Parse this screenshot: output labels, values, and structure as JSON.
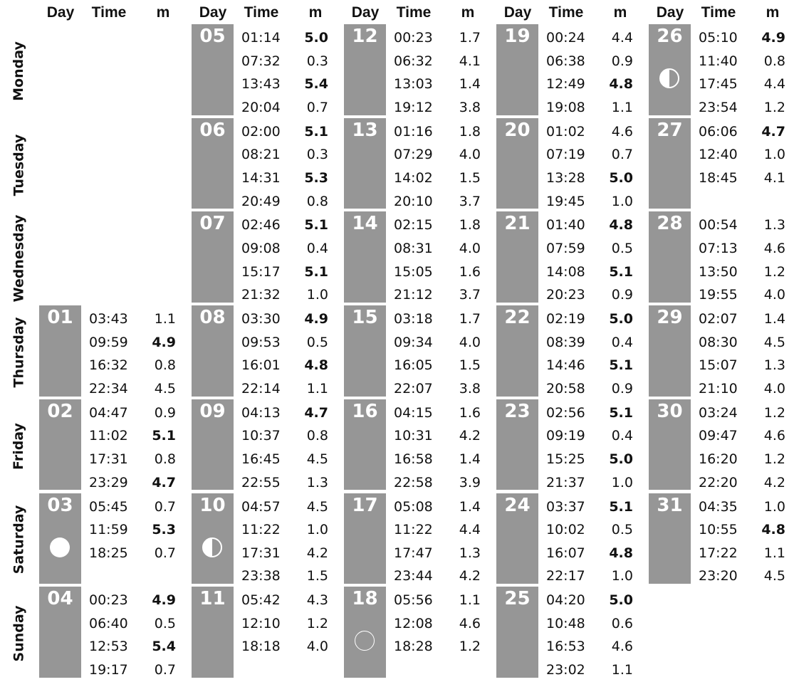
{
  "headers": {
    "day": "Day",
    "time": "Time",
    "height": "m"
  },
  "weekdays": [
    "Monday",
    "Tuesday",
    "Wednesday",
    "Thursday",
    "Friday",
    "Saturday",
    "Sunday"
  ],
  "days": [
    {
      "day": "01",
      "col": 0,
      "row": 3,
      "tides": [
        [
          "03:43",
          "1.1",
          false
        ],
        [
          "09:59",
          "4.9",
          true
        ],
        [
          "16:32",
          "0.8",
          false
        ],
        [
          "22:34",
          "4.5",
          false
        ]
      ]
    },
    {
      "day": "02",
      "col": 0,
      "row": 4,
      "tides": [
        [
          "04:47",
          "0.9",
          false
        ],
        [
          "11:02",
          "5.1",
          true
        ],
        [
          "17:31",
          "0.8",
          false
        ],
        [
          "23:29",
          "4.7",
          true
        ]
      ]
    },
    {
      "day": "03",
      "col": 0,
      "row": 5,
      "moon": "full-moon",
      "tides": [
        [
          "05:45",
          "0.7",
          false
        ],
        [
          "11:59",
          "5.3",
          true
        ],
        [
          "18:25",
          "0.7",
          false
        ]
      ]
    },
    {
      "day": "04",
      "col": 0,
      "row": 6,
      "tides": [
        [
          "00:23",
          "4.9",
          true
        ],
        [
          "06:40",
          "0.5",
          false
        ],
        [
          "12:53",
          "5.4",
          true
        ],
        [
          "19:17",
          "0.7",
          false
        ]
      ]
    },
    {
      "day": "05",
      "col": 1,
      "row": 0,
      "tides": [
        [
          "01:14",
          "5.0",
          true
        ],
        [
          "07:32",
          "0.3",
          false
        ],
        [
          "13:43",
          "5.4",
          true
        ],
        [
          "20:04",
          "0.7",
          false
        ]
      ]
    },
    {
      "day": "06",
      "col": 1,
      "row": 1,
      "tides": [
        [
          "02:00",
          "5.1",
          true
        ],
        [
          "08:21",
          "0.3",
          false
        ],
        [
          "14:31",
          "5.3",
          true
        ],
        [
          "20:49",
          "0.8",
          false
        ]
      ]
    },
    {
      "day": "07",
      "col": 1,
      "row": 2,
      "tides": [
        [
          "02:46",
          "5.1",
          true
        ],
        [
          "09:08",
          "0.4",
          false
        ],
        [
          "15:17",
          "5.1",
          true
        ],
        [
          "21:32",
          "1.0",
          false
        ]
      ]
    },
    {
      "day": "08",
      "col": 1,
      "row": 3,
      "tides": [
        [
          "03:30",
          "4.9",
          true
        ],
        [
          "09:53",
          "0.5",
          false
        ],
        [
          "16:01",
          "4.8",
          true
        ],
        [
          "22:14",
          "1.1",
          false
        ]
      ]
    },
    {
      "day": "09",
      "col": 1,
      "row": 4,
      "tides": [
        [
          "04:13",
          "4.7",
          true
        ],
        [
          "10:37",
          "0.8",
          false
        ],
        [
          "16:45",
          "4.5",
          false
        ],
        [
          "22:55",
          "1.3",
          false
        ]
      ]
    },
    {
      "day": "10",
      "col": 1,
      "row": 5,
      "moon": "last-quarter",
      "tides": [
        [
          "04:57",
          "4.5",
          false
        ],
        [
          "11:22",
          "1.0",
          false
        ],
        [
          "17:31",
          "4.2",
          false
        ],
        [
          "23:38",
          "1.5",
          false
        ]
      ]
    },
    {
      "day": "11",
      "col": 1,
      "row": 6,
      "tides": [
        [
          "05:42",
          "4.3",
          false
        ],
        [
          "12:10",
          "1.2",
          false
        ],
        [
          "18:18",
          "4.0",
          false
        ]
      ]
    },
    {
      "day": "12",
      "col": 2,
      "row": 0,
      "tides": [
        [
          "00:23",
          "1.7",
          false
        ],
        [
          "06:32",
          "4.1",
          false
        ],
        [
          "13:03",
          "1.4",
          false
        ],
        [
          "19:12",
          "3.8",
          false
        ]
      ]
    },
    {
      "day": "13",
      "col": 2,
      "row": 1,
      "tides": [
        [
          "01:16",
          "1.8",
          false
        ],
        [
          "07:29",
          "4.0",
          false
        ],
        [
          "14:02",
          "1.5",
          false
        ],
        [
          "20:10",
          "3.7",
          false
        ]
      ]
    },
    {
      "day": "14",
      "col": 2,
      "row": 2,
      "tides": [
        [
          "02:15",
          "1.8",
          false
        ],
        [
          "08:31",
          "4.0",
          false
        ],
        [
          "15:05",
          "1.6",
          false
        ],
        [
          "21:12",
          "3.7",
          false
        ]
      ]
    },
    {
      "day": "15",
      "col": 2,
      "row": 3,
      "tides": [
        [
          "03:18",
          "1.7",
          false
        ],
        [
          "09:34",
          "4.0",
          false
        ],
        [
          "16:05",
          "1.5",
          false
        ],
        [
          "22:07",
          "3.8",
          false
        ]
      ]
    },
    {
      "day": "16",
      "col": 2,
      "row": 4,
      "tides": [
        [
          "04:15",
          "1.6",
          false
        ],
        [
          "10:31",
          "4.2",
          false
        ],
        [
          "16:58",
          "1.4",
          false
        ],
        [
          "22:58",
          "3.9",
          false
        ]
      ]
    },
    {
      "day": "17",
      "col": 2,
      "row": 5,
      "tides": [
        [
          "05:08",
          "1.4",
          false
        ],
        [
          "11:22",
          "4.4",
          false
        ],
        [
          "17:47",
          "1.3",
          false
        ],
        [
          "23:44",
          "4.2",
          false
        ]
      ]
    },
    {
      "day": "18",
      "col": 2,
      "row": 6,
      "moon": "new-moon",
      "tides": [
        [
          "05:56",
          "1.1",
          false
        ],
        [
          "12:08",
          "4.6",
          false
        ],
        [
          "18:28",
          "1.2",
          false
        ]
      ]
    },
    {
      "day": "19",
      "col": 3,
      "row": 0,
      "tides": [
        [
          "00:24",
          "4.4",
          false
        ],
        [
          "06:38",
          "0.9",
          false
        ],
        [
          "12:49",
          "4.8",
          true
        ],
        [
          "19:08",
          "1.1",
          false
        ]
      ]
    },
    {
      "day": "20",
      "col": 3,
      "row": 1,
      "tides": [
        [
          "01:02",
          "4.6",
          false
        ],
        [
          "07:19",
          "0.7",
          false
        ],
        [
          "13:28",
          "5.0",
          true
        ],
        [
          "19:45",
          "1.0",
          false
        ]
      ]
    },
    {
      "day": "21",
      "col": 3,
      "row": 2,
      "tides": [
        [
          "01:40",
          "4.8",
          true
        ],
        [
          "07:59",
          "0.5",
          false
        ],
        [
          "14:08",
          "5.1",
          true
        ],
        [
          "20:23",
          "0.9",
          false
        ]
      ]
    },
    {
      "day": "22",
      "col": 3,
      "row": 3,
      "tides": [
        [
          "02:19",
          "5.0",
          true
        ],
        [
          "08:39",
          "0.4",
          false
        ],
        [
          "14:46",
          "5.1",
          true
        ],
        [
          "20:58",
          "0.9",
          false
        ]
      ]
    },
    {
      "day": "23",
      "col": 3,
      "row": 4,
      "tides": [
        [
          "02:56",
          "5.1",
          true
        ],
        [
          "09:19",
          "0.4",
          false
        ],
        [
          "15:25",
          "5.0",
          true
        ],
        [
          "21:37",
          "1.0",
          false
        ]
      ]
    },
    {
      "day": "24",
      "col": 3,
      "row": 5,
      "tides": [
        [
          "03:37",
          "5.1",
          true
        ],
        [
          "10:02",
          "0.5",
          false
        ],
        [
          "16:07",
          "4.8",
          true
        ],
        [
          "22:17",
          "1.0",
          false
        ]
      ]
    },
    {
      "day": "25",
      "col": 3,
      "row": 6,
      "tides": [
        [
          "04:20",
          "5.0",
          true
        ],
        [
          "10:48",
          "0.6",
          false
        ],
        [
          "16:53",
          "4.6",
          false
        ],
        [
          "23:02",
          "1.1",
          false
        ]
      ]
    },
    {
      "day": "26",
      "col": 4,
      "row": 0,
      "moon": "first-quarter",
      "tides": [
        [
          "05:10",
          "4.9",
          true
        ],
        [
          "11:40",
          "0.8",
          false
        ],
        [
          "17:45",
          "4.4",
          false
        ],
        [
          "23:54",
          "1.2",
          false
        ]
      ]
    },
    {
      "day": "27",
      "col": 4,
      "row": 1,
      "tides": [
        [
          "06:06",
          "4.7",
          true
        ],
        [
          "12:40",
          "1.0",
          false
        ],
        [
          "18:45",
          "4.1",
          false
        ]
      ]
    },
    {
      "day": "28",
      "col": 4,
      "row": 2,
      "tides": [
        [
          "00:54",
          "1.3",
          false
        ],
        [
          "07:13",
          "4.6",
          false
        ],
        [
          "13:50",
          "1.2",
          false
        ],
        [
          "19:55",
          "4.0",
          false
        ]
      ]
    },
    {
      "day": "29",
      "col": 4,
      "row": 3,
      "tides": [
        [
          "02:07",
          "1.4",
          false
        ],
        [
          "08:30",
          "4.5",
          false
        ],
        [
          "15:07",
          "1.3",
          false
        ],
        [
          "21:10",
          "4.0",
          false
        ]
      ]
    },
    {
      "day": "30",
      "col": 4,
      "row": 4,
      "tides": [
        [
          "03:24",
          "1.2",
          false
        ],
        [
          "09:47",
          "4.6",
          false
        ],
        [
          "16:20",
          "1.2",
          false
        ],
        [
          "22:20",
          "4.2",
          false
        ]
      ]
    },
    {
      "day": "31",
      "col": 4,
      "row": 5,
      "tides": [
        [
          "04:35",
          "1.0",
          false
        ],
        [
          "10:55",
          "4.8",
          true
        ],
        [
          "17:22",
          "1.1",
          false
        ],
        [
          "23:20",
          "4.5",
          false
        ]
      ]
    }
  ]
}
